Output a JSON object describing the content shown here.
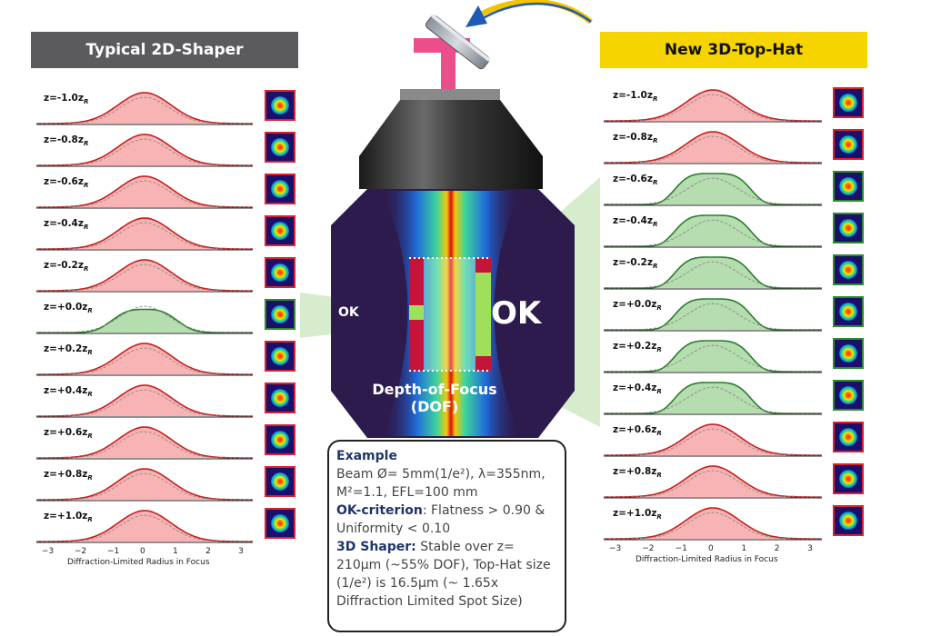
{
  "left_panel": {
    "title": "Typical 2D-Shaper",
    "rows": [
      {
        "label": "z=-1.0z",
        "status": "fail"
      },
      {
        "label": "z=-0.8z",
        "status": "fail"
      },
      {
        "label": "z=-0.6z",
        "status": "fail"
      },
      {
        "label": "z=-0.4z",
        "status": "fail"
      },
      {
        "label": "z=-0.2z",
        "status": "fail"
      },
      {
        "label": "z=+0.0z",
        "status": "ok"
      },
      {
        "label": "z=+0.2z",
        "status": "fail"
      },
      {
        "label": "z=+0.4z",
        "status": "fail"
      },
      {
        "label": "z=+0.6z",
        "status": "fail"
      },
      {
        "label": "z=+0.8z",
        "status": "fail"
      },
      {
        "label": "z=+1.0z",
        "status": "fail"
      }
    ],
    "axis_ticks": [
      "−3",
      "−2",
      "−1",
      "0",
      "1",
      "2",
      "3"
    ],
    "axis_title": "Diffraction-Limited Radius in Focus"
  },
  "right_panel": {
    "title": "New 3D-Top-Hat",
    "rows": [
      {
        "label": "z=-1.0z",
        "status": "fail"
      },
      {
        "label": "z=-0.8z",
        "status": "fail"
      },
      {
        "label": "z=-0.6z",
        "status": "ok"
      },
      {
        "label": "z=-0.4z",
        "status": "ok"
      },
      {
        "label": "z=-0.2z",
        "status": "ok"
      },
      {
        "label": "z=+0.0z",
        "status": "ok"
      },
      {
        "label": "z=+0.2z",
        "status": "ok"
      },
      {
        "label": "z=+0.4z",
        "status": "ok"
      },
      {
        "label": "z=+0.6z",
        "status": "fail"
      },
      {
        "label": "z=+0.8z",
        "status": "fail"
      },
      {
        "label": "z=+1.0z",
        "status": "fail"
      }
    ],
    "axis_ticks": [
      "−3",
      "−2",
      "−1",
      "0",
      "1",
      "2",
      "3"
    ],
    "axis_title": "Diffraction-Limited Radius in Focus"
  },
  "subscript": "R",
  "center": {
    "ok_small": "OK",
    "ok_big": "OK",
    "dof_line1": "Depth-of-Focus",
    "dof_line2": "(DOF)"
  },
  "example": {
    "heading": "Example",
    "beam_text": "Beam Ø= 5mm(1/e²), λ=355nm, M²=1.1, EFL=100 mm",
    "ok_heading": "OK-criterion",
    "ok_text": ": Flatness > 0.90 & Uniformity < 0.10",
    "shaper_heading": "3D Shaper:",
    "shaper_text": " Stable over z= 210µm (~55% DOF), Top-Hat size (1/e²) is 16.5µm (~ 1.65x Diffraction Limited Spot Size)"
  },
  "colors": {
    "fail_fill": "#f8b4b4",
    "fail_stroke": "#c81e1e",
    "ok_fill": "#b5ddb0",
    "ok_stroke": "#2d7d2d",
    "header_left": "#5b5b5e",
    "header_right": "#f6d400",
    "hexagon": "#2d1b4e"
  }
}
